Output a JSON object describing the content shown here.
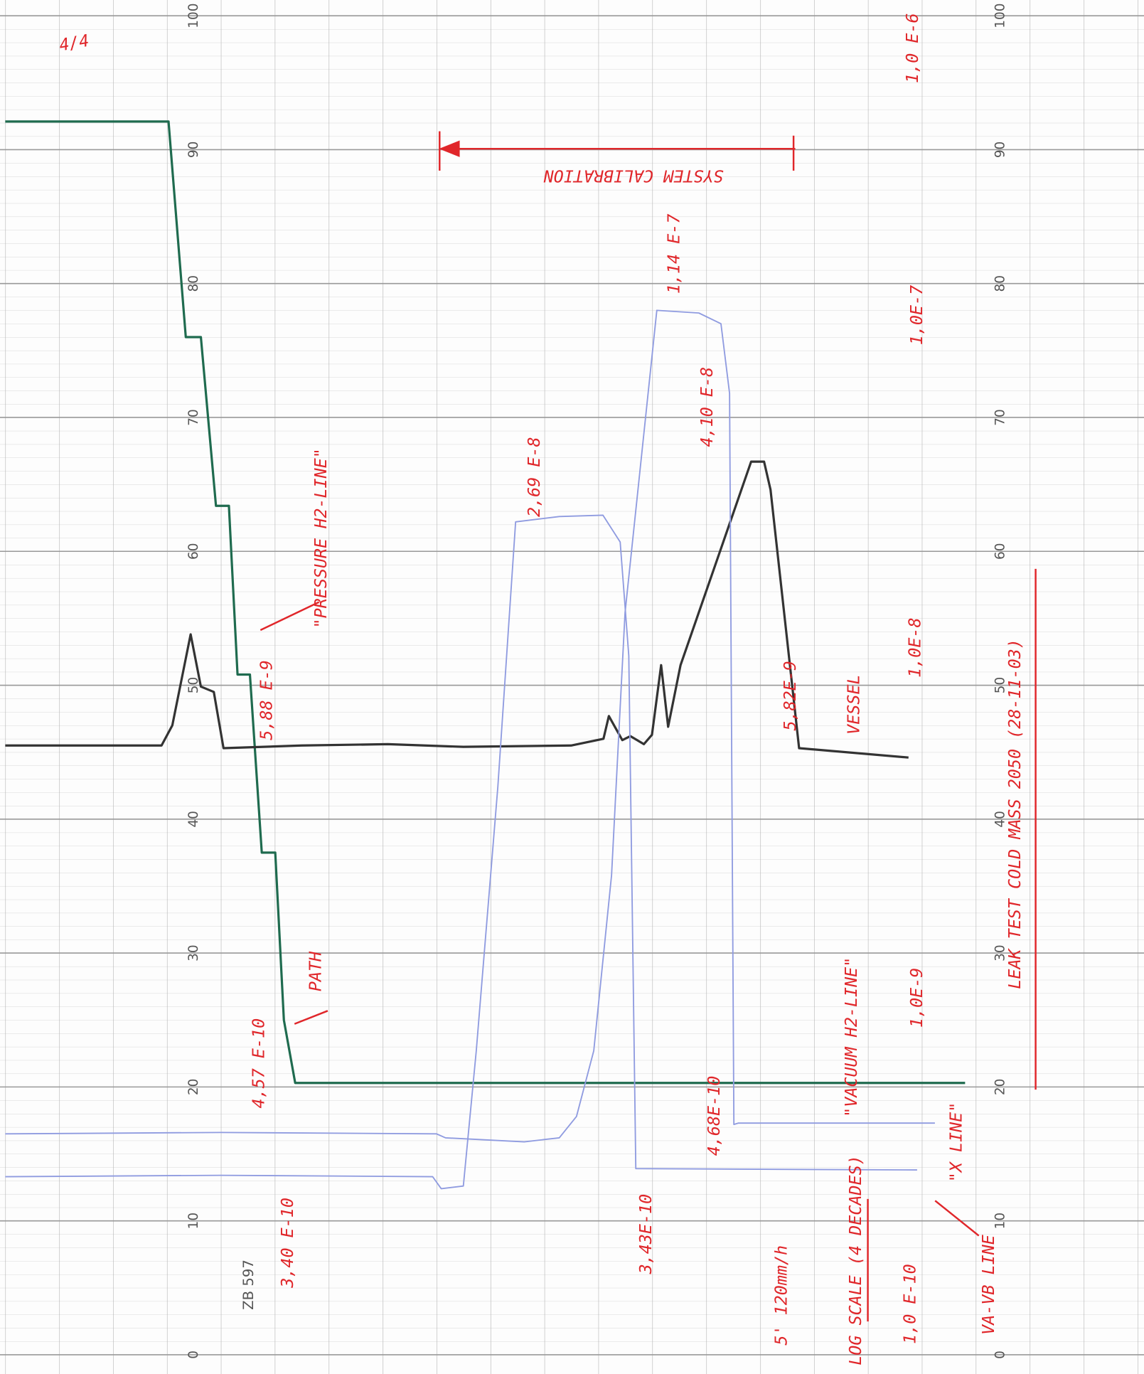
{
  "chart_data": {
    "type": "line",
    "page_label": "4/4",
    "paper_code": "ZB 597",
    "ylim": [
      0,
      100
    ],
    "yticks": [
      0,
      10,
      20,
      30,
      40,
      50,
      60,
      70,
      80,
      90,
      100
    ],
    "xlim": [
      0,
      21
    ],
    "grid": true,
    "series": [
      {
        "name": "\"PRESSURE H2-LINE\"",
        "color": "#1f6b4f",
        "x": [
          0,
          3.03,
          3.35,
          3.63,
          3.91,
          4.15,
          4.31,
          4.54,
          4.76,
          5.01,
          5.17,
          5.38,
          17.81
        ],
        "values": [
          92.1,
          92.1,
          76,
          76,
          63.4,
          63.4,
          50.8,
          50.8,
          37.5,
          37.5,
          25,
          20.3,
          20.3
        ]
      },
      {
        "name": "VESSEL",
        "color": "#333333",
        "x": [
          0,
          2.9,
          3.1,
          3.44,
          3.63,
          3.87,
          4.05,
          5.5,
          7.1,
          8.5,
          10.5,
          11.1,
          11.2,
          11.45,
          11.6,
          11.85,
          12.0,
          12.17,
          12.3,
          12.53,
          13.84,
          14.08,
          14.2,
          14.73,
          16.76
        ],
        "values": [
          45.5,
          45.5,
          47,
          53.8,
          49.9,
          49.5,
          45.3,
          45.5,
          45.6,
          45.4,
          45.5,
          46,
          47.7,
          45.9,
          46.2,
          45.6,
          46.3,
          51.5,
          46.9,
          51.5,
          66.7,
          66.7,
          64.6,
          45.3,
          44.6
        ]
      },
      {
        "name": "\"X LINE\"",
        "color": "#8f9be0",
        "x": [
          0,
          4,
          8,
          8.17,
          9.63,
          10.28,
          10.6,
          10.92,
          11.25,
          11.5,
          12.09,
          12.87,
          13.28,
          13.44,
          13.52,
          13.6,
          17.25
        ],
        "values": [
          16.5,
          16.6,
          16.5,
          16.2,
          15.9,
          16.2,
          17.8,
          22.7,
          35.8,
          55.4,
          78,
          77.8,
          77,
          71.8,
          17.2,
          17.3,
          17.3
        ]
      },
      {
        "name": "VA-VB LINE",
        "color": "#8f9be0",
        "x": [
          0,
          4,
          7.93,
          8.09,
          8.5,
          8.74,
          9.14,
          9.47,
          10.28,
          11.09,
          11.41,
          11.57,
          11.7,
          16.92
        ],
        "values": [
          13.3,
          13.4,
          13.3,
          12.4,
          12.6,
          22.7,
          42.4,
          62.2,
          62.6,
          62.7,
          60.7,
          52.2,
          13.9,
          13.8
        ]
      }
    ],
    "annotations": [
      "SYSTEM CALIBRATION",
      "1,14 E-7",
      "4,10 E-8",
      "2,69 E-8",
      "5,88 E-9",
      "5,82E-9",
      "PATH",
      "4,57 E-10",
      "3,40 E-10",
      "3,43E-10",
      "4,68E-10",
      "\"VACUUM H2-LINE\"",
      "LOG SCALE (4 DECADES)",
      "5' 120mm/h"
    ],
    "decade_labels": [
      "1,0 E-6",
      "1,0E-7",
      "1,0E-8",
      "1,0E-9",
      "1,0 E-10"
    ],
    "title": "LEAK TEST COLD MASS 2050 (28-11-03)"
  }
}
